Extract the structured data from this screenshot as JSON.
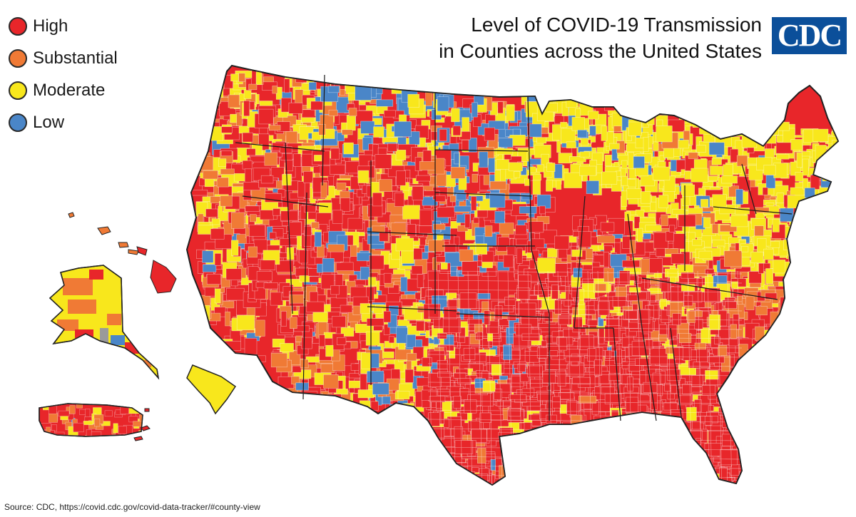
{
  "title": {
    "line1": "Level of COVID-19 Transmission",
    "line2": "in Counties across the United States"
  },
  "logo": {
    "text": "CDC"
  },
  "legend": [
    {
      "label": "High",
      "color": "#e8262a"
    },
    {
      "label": "Substantial",
      "color": "#f07a35"
    },
    {
      "label": "Moderate",
      "color": "#f8e71c"
    },
    {
      "label": "Low",
      "color": "#4a86c8"
    }
  ],
  "no_data_color": "#9a9a9a",
  "source": "Source: CDC, https://covid.cdc.gov/covid-data-tracker/#county-view"
}
